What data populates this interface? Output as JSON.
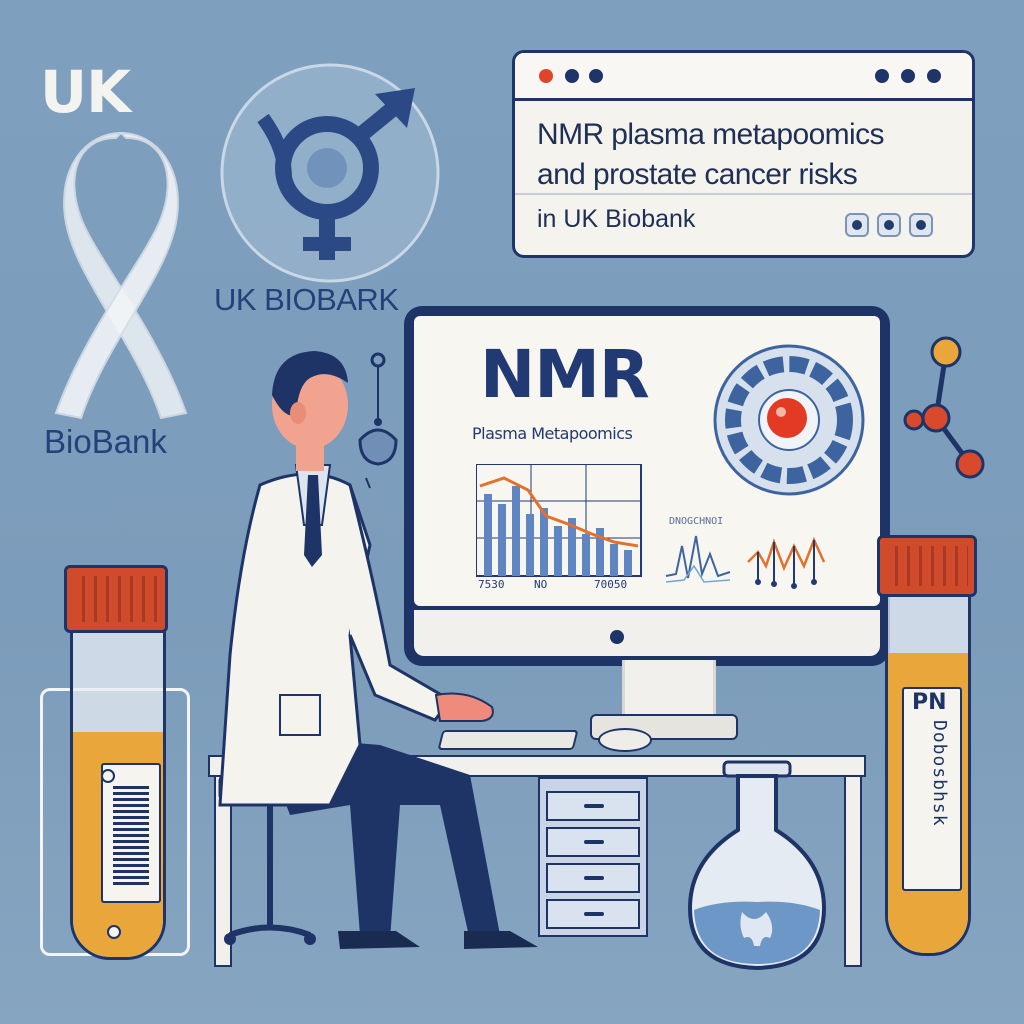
{
  "brand": {
    "uk": "UK",
    "biobank": "BioBank",
    "uk_biobark": "UK BIOBARK"
  },
  "browser": {
    "title_line1": "NMR plasma metapoomics",
    "title_line2": "and prostate cancer risks",
    "subtitle": "in UK Biobank"
  },
  "monitor": {
    "title": "NMR",
    "subtitle": "Plasma Metapoomics",
    "tick_labels": [
      "7530",
      "NO",
      "70050"
    ],
    "small_label": "DNOGCHNOI"
  },
  "tubes": {
    "right_label": "PN",
    "right_vertical": "Dobosbhsk"
  },
  "colors": {
    "background": "#7b9cba",
    "navy": "#1e3366",
    "accent_red": "#d04a2c",
    "accent_orange": "#e9a63a",
    "paper": "#f4f3ee"
  }
}
